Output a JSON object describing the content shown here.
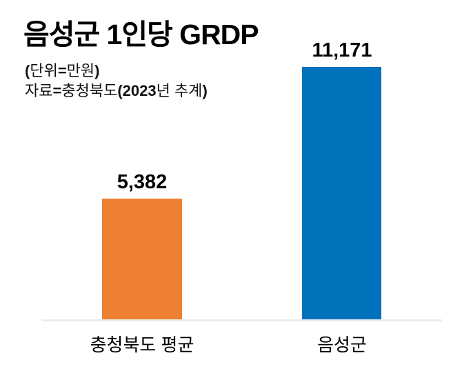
{
  "notes": {
    "unit_segments": [
      {
        "t": "(",
        "b": true
      },
      {
        "t": "단위",
        "b": false
      },
      {
        "t": "=",
        "b": true
      },
      {
        "t": "만원",
        "b": false
      },
      {
        "t": ")",
        "b": true
      }
    ],
    "source_segments": [
      {
        "t": "자료",
        "b": false
      },
      {
        "t": "=",
        "b": true
      },
      {
        "t": "충청북도",
        "b": false
      },
      {
        "t": "(2023",
        "b": true
      },
      {
        "t": "년 추계",
        "b": false
      },
      {
        "t": ")",
        "b": true
      }
    ]
  },
  "chart_data": {
    "type": "bar",
    "title": "음성군 1인당 GRDP",
    "unit_label": "(단위=만원)",
    "source_label": "자료=충청북도(2023년 추계)",
    "categories": [
      "충청북도 평균",
      "음성군"
    ],
    "values": [
      5382,
      11171
    ],
    "value_labels": [
      "5,382",
      "11,171"
    ],
    "bar_colors": [
      "#ee8032",
      "#0072bc"
    ],
    "ylim": [
      0,
      11171
    ],
    "xlabel": "",
    "ylabel": "",
    "grid": false,
    "legend": false,
    "axis_line_color": "#ebebeb",
    "background_color": "#ffffff",
    "text_color": "#000000"
  }
}
